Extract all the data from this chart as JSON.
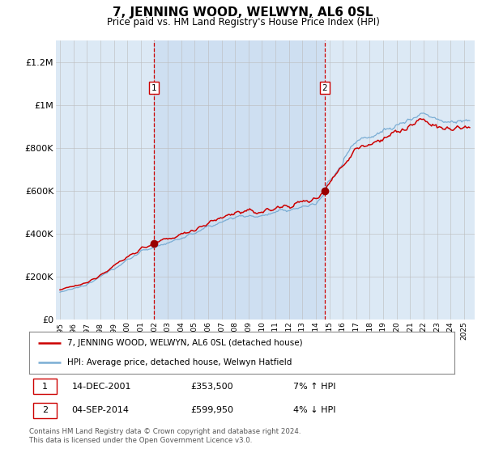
{
  "title": "7, JENNING WOOD, WELWYN, AL6 0SL",
  "subtitle": "Price paid vs. HM Land Registry's House Price Index (HPI)",
  "background_color": "#ffffff",
  "plot_bg_color": "#dce9f5",
  "shade_color": "#c5d9ef",
  "ylim": [
    0,
    1300000
  ],
  "yticks": [
    0,
    200000,
    400000,
    600000,
    800000,
    1000000,
    1200000
  ],
  "ytick_labels": [
    "£0",
    "£200K",
    "£400K",
    "£600K",
    "£800K",
    "£1M",
    "£1.2M"
  ],
  "sale1_price": 353500,
  "sale1_display_date": "14-DEC-2001",
  "sale1_pct": "7% ↑ HPI",
  "sale2_price": 599950,
  "sale2_display_date": "04-SEP-2014",
  "sale2_pct": "4% ↓ HPI",
  "legend_label_red": "7, JENNING WOOD, WELWYN, AL6 0SL (detached house)",
  "legend_label_blue": "HPI: Average price, detached house, Welwyn Hatfield",
  "footnote": "Contains HM Land Registry data © Crown copyright and database right 2024.\nThis data is licensed under the Open Government Licence v3.0.",
  "line_red": "#cc0000",
  "line_blue": "#7aadd4",
  "dashed_red": "#cc0000",
  "marker_color": "#990000",
  "sale1_t": 2001.958,
  "sale2_t": 2014.667,
  "xstart": 1995.0,
  "xend": 2025.5
}
